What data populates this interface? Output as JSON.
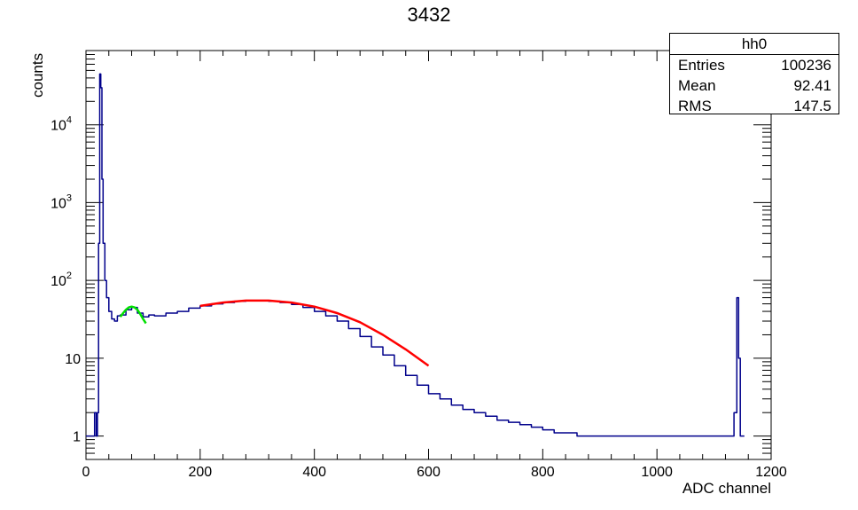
{
  "page_title": "3432",
  "stats_box": {
    "name": "hh0",
    "rows": [
      {
        "key": "Entries",
        "value": "100236"
      },
      {
        "key": "Mean",
        "value": "92.41"
      },
      {
        "key": "RMS",
        "value": "147.5"
      }
    ]
  },
  "colors": {
    "histogram": "#00008b",
    "fit_main": "#ff0000",
    "fit_peak": "#00e000",
    "axis": "#000000"
  },
  "chart_data": {
    "type": "line",
    "title": "3432",
    "xlabel": "ADC channel",
    "ylabel": "counts",
    "xlim": [
      0,
      1200
    ],
    "ylim": [
      0.5,
      90000
    ],
    "y_scale": "log",
    "grid": false,
    "legend": "none",
    "x_ticks": [
      0,
      200,
      400,
      600,
      800,
      1000,
      1200
    ],
    "y_ticks": [
      {
        "value": 1,
        "label": "1"
      },
      {
        "value": 10,
        "label": "10"
      },
      {
        "value": 100,
        "label": "10",
        "exp": "2"
      },
      {
        "value": 1000,
        "label": "10",
        "exp": "3"
      },
      {
        "value": 10000,
        "label": "10",
        "exp": "4"
      }
    ],
    "series": [
      {
        "kind": "histogram",
        "x": [
          0,
          10,
          15,
          18,
          20,
          22,
          24,
          26,
          28,
          30,
          33,
          36,
          40,
          45,
          50,
          55,
          60,
          70,
          80,
          90,
          100,
          110,
          120,
          140,
          160,
          180,
          200,
          220,
          240,
          260,
          280,
          300,
          320,
          340,
          360,
          380,
          400,
          420,
          440,
          460,
          480,
          500,
          520,
          540,
          560,
          580,
          600,
          620,
          640,
          660,
          680,
          700,
          720,
          740,
          760,
          780,
          800,
          820,
          840,
          860,
          880,
          900,
          920,
          940,
          960,
          980,
          1000,
          1020,
          1040,
          1060,
          1080,
          1100,
          1120,
          1130,
          1135,
          1140,
          1143,
          1146,
          1150
        ],
        "y": [
          1,
          1,
          2,
          1,
          2,
          300,
          45000,
          30000,
          2000,
          300,
          100,
          60,
          40,
          32,
          30,
          35,
          36,
          42,
          45,
          38,
          34,
          36,
          35,
          38,
          40,
          44,
          47,
          50,
          52,
          54,
          55,
          55,
          54,
          52,
          49,
          45,
          40,
          35,
          30,
          24,
          19,
          14,
          11,
          8,
          6,
          4.5,
          3.5,
          3,
          2.5,
          2.2,
          2,
          1.8,
          1.6,
          1.5,
          1.4,
          1.3,
          1.2,
          1.1,
          1.1,
          1,
          1,
          1,
          1,
          1,
          1,
          1,
          1,
          1,
          1,
          1,
          1,
          1,
          1,
          1,
          2,
          60,
          10,
          1,
          1
        ]
      },
      {
        "kind": "fit",
        "x": [
          60,
          65,
          70,
          75,
          80,
          85,
          90,
          95,
          100,
          105
        ],
        "y": [
          34,
          38,
          42,
          45,
          46,
          45,
          42,
          37,
          32,
          28
        ]
      },
      {
        "kind": "fit",
        "x": [
          200,
          240,
          280,
          320,
          360,
          400,
          440,
          480,
          520,
          560,
          600
        ],
        "y": [
          47,
          52,
          55,
          55,
          52,
          46,
          38,
          29,
          20,
          13,
          8
        ]
      }
    ]
  }
}
